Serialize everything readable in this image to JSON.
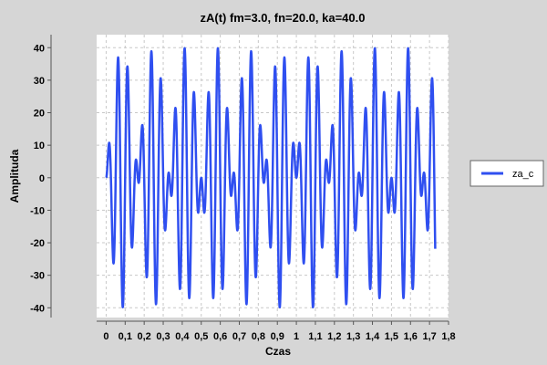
{
  "chart_data": {
    "type": "line",
    "title": "zA(t) fm=3.0, fn=20.0, ka=40.0",
    "xlabel": "Czas",
    "ylabel": "Amplituda",
    "xlim": [
      -0.05,
      1.8
    ],
    "ylim": [
      -43,
      44
    ],
    "x_ticks": [
      0,
      0.1,
      0.2,
      0.3,
      0.4,
      0.5,
      0.6,
      0.7,
      0.8,
      0.9,
      1.0,
      1.1,
      1.2,
      1.3,
      1.4,
      1.5,
      1.6,
      1.7,
      1.8
    ],
    "x_tick_labels": [
      "0",
      "0,1",
      "0,2",
      "0,3",
      "0,4",
      "0,5",
      "0,6",
      "0,7",
      "0,8",
      "0,9",
      "1",
      "1,1",
      "1,2",
      "1,3",
      "1,4",
      "1,5",
      "1,6",
      "1,7",
      "1,8"
    ],
    "y_ticks": [
      -40,
      -30,
      -20,
      -10,
      0,
      10,
      20,
      30,
      40
    ],
    "y_tick_labels": [
      "-40",
      "-30",
      "-20",
      "-10",
      "0",
      "10",
      "20",
      "30",
      "40"
    ],
    "grid": true,
    "legend_position": "right",
    "series": [
      {
        "name": "za_c",
        "color": "#2f4ff0",
        "fm": 3.0,
        "fn": 20.0,
        "ka": 40.0,
        "x_start": 0,
        "x_end": 1.73,
        "sample_step": 0.001
      }
    ],
    "colors": {
      "background": "#d6d6d6",
      "plot_background": "#ffffff",
      "grid": "#c8c8c8",
      "series": "#2f4ff0"
    }
  }
}
